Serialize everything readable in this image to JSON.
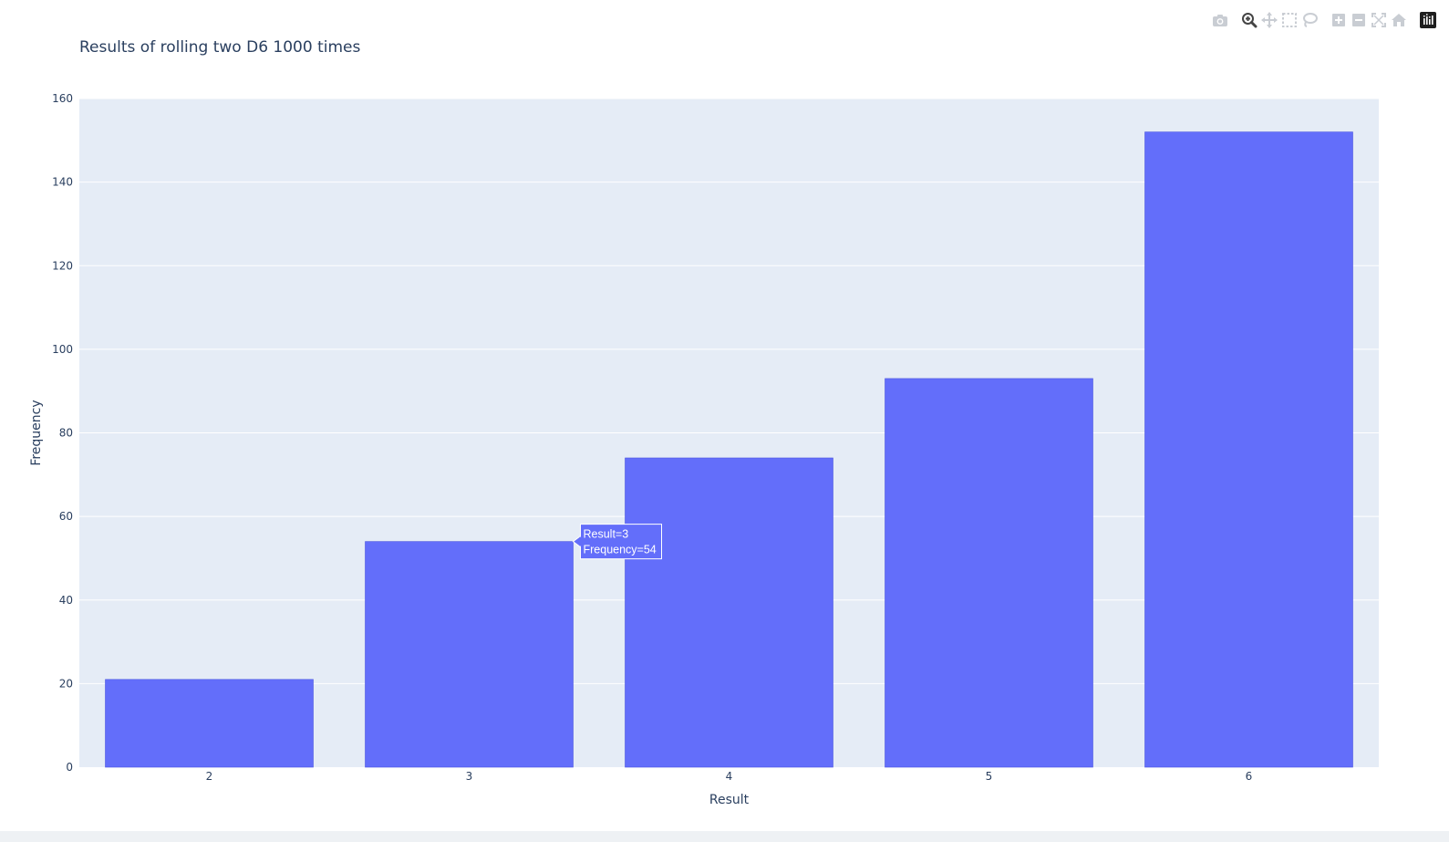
{
  "chart_data": {
    "type": "bar",
    "title": "Results of rolling two D6 1000 times",
    "xlabel": "Result",
    "ylabel": "Frequency",
    "categories": [
      "2",
      "3",
      "4",
      "5",
      "6"
    ],
    "values": [
      21,
      54,
      74,
      93,
      152
    ],
    "ylim": [
      0,
      160
    ],
    "yticks": [
      0,
      20,
      40,
      60,
      80,
      100,
      120,
      140,
      160
    ],
    "grid": true,
    "bar_color": "#636efa",
    "plot_bgcolor": "#e5ecf6",
    "hover": {
      "category_index": 1,
      "lines": [
        "Result=3",
        "Frequency=54"
      ]
    }
  },
  "toolbar": {
    "icons": [
      "camera-icon",
      "zoom-icon",
      "pan-icon",
      "box-select-icon",
      "lasso-select-icon",
      "zoom-in-icon",
      "zoom-out-icon",
      "autoscale-icon",
      "reset-axes-icon",
      "plotly-logo-icon"
    ]
  }
}
